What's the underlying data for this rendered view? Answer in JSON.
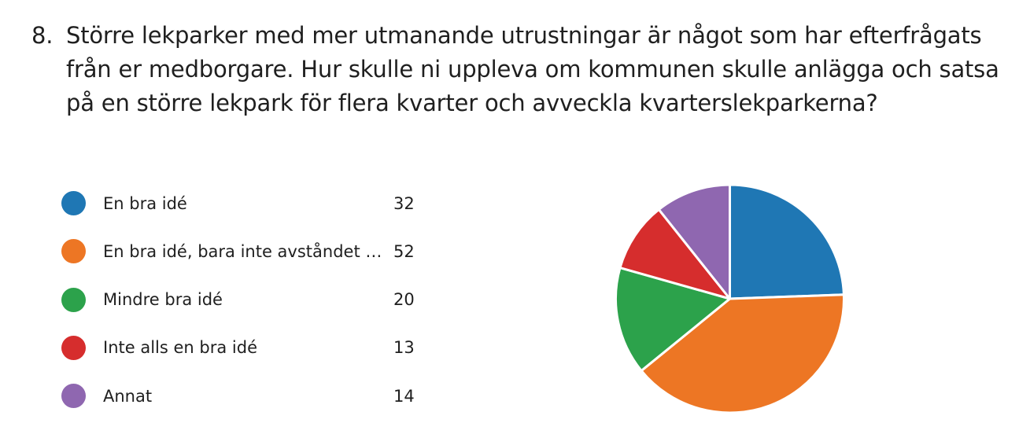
{
  "question": {
    "number": "8.",
    "text": "Större lekparker med mer utmanande utrustningar är något som har efterfrågats från er medborgare. Hur skulle ni uppleva om kommunen skulle anlägga och satsa på en större lekpark för flera kvarter och avveckla kvarterslekparkerna?"
  },
  "chart_data": {
    "type": "pie",
    "categories": [
      "En bra idé",
      "En bra idé, bara inte avståndet ti...",
      "Mindre bra idé",
      "Inte alls en bra idé",
      "Annat"
    ],
    "values": [
      32,
      52,
      20,
      13,
      14
    ],
    "colors": [
      "#1f77b4",
      "#ed7624",
      "#2ca24b",
      "#d62d2d",
      "#8f67b0"
    ],
    "legend_position": "left"
  }
}
